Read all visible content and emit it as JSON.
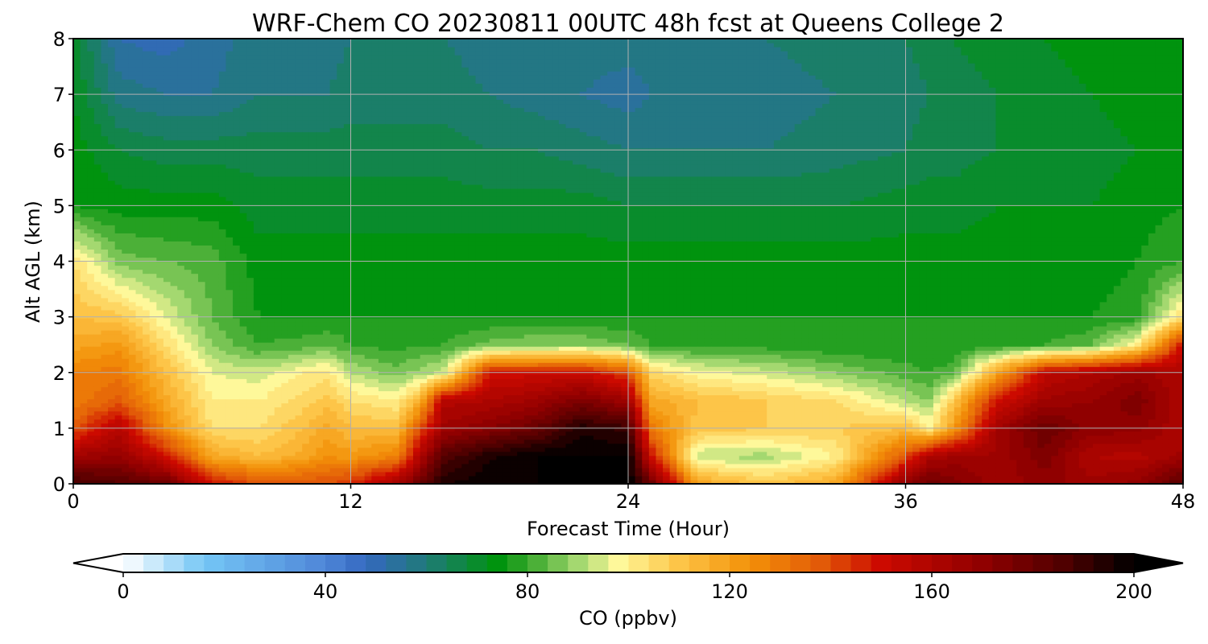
{
  "chart_data": {
    "type": "heatmap",
    "title": "WRF-Chem CO  20230811 00UTC 48h fcst at Queens College 2",
    "xlabel": "Forecast Time (Hour)",
    "ylabel": "Alt AGL (km)",
    "xlim": [
      0,
      48
    ],
    "ylim": [
      0,
      8
    ],
    "x_ticks": [
      "0",
      "12",
      "24",
      "36",
      "48"
    ],
    "y_ticks": [
      "0",
      "1",
      "2",
      "3",
      "4",
      "5",
      "6",
      "7",
      "8"
    ],
    "grid": true,
    "colorbar": {
      "label": "CO  (ppbv)",
      "range": [
        0,
        200
      ],
      "ticks": [
        "0",
        "40",
        "80",
        "120",
        "160",
        "200"
      ],
      "extend": "both",
      "levels_step": 4,
      "colors": {
        "under": "#ffffff",
        "over": "#000000",
        "stops": [
          [
            0,
            "#ffffff"
          ],
          [
            16,
            "#74c6f5"
          ],
          [
            40,
            "#4f86d8"
          ],
          [
            48,
            "#3468c0"
          ],
          [
            60,
            "#1f7a78"
          ],
          [
            74,
            "#00930e"
          ],
          [
            80,
            "#36a62a"
          ],
          [
            90,
            "#a4d870"
          ],
          [
            98,
            "#fef89a"
          ],
          [
            110,
            "#fdc548"
          ],
          [
            124,
            "#f39108"
          ],
          [
            138,
            "#e25a08"
          ],
          [
            150,
            "#cc0a00"
          ],
          [
            170,
            "#900000"
          ],
          [
            186,
            "#500000"
          ],
          [
            200,
            "#000000"
          ]
        ]
      }
    },
    "heights_km": [
      0.0,
      0.5,
      1.0,
      1.5,
      2.0,
      2.5,
      3.0,
      4.0,
      5.0,
      6.0,
      7.0,
      8.0
    ],
    "series": [
      {
        "x": 0,
        "values": [
          190,
          165,
          138,
          128,
          128,
          118,
          112,
          104,
          76,
          74,
          72,
          70
        ]
      },
      {
        "x": 2,
        "values": [
          185,
          168,
          158,
          138,
          130,
          122,
          110,
          86,
          74,
          68,
          58,
          52
        ]
      },
      {
        "x": 4,
        "values": [
          180,
          150,
          125,
          118,
          112,
          104,
          96,
          84,
          74,
          66,
          56,
          50
        ]
      },
      {
        "x": 6,
        "values": [
          150,
          118,
          104,
          100,
          96,
          88,
          84,
          82,
          74,
          66,
          56,
          54
        ]
      },
      {
        "x": 8,
        "values": [
          140,
          112,
          104,
          100,
          94,
          80,
          76,
          74,
          70,
          66,
          60,
          58
        ]
      },
      {
        "x": 10,
        "values": [
          140,
          118,
          112,
          106,
          100,
          82,
          76,
          74,
          70,
          66,
          60,
          58
        ]
      },
      {
        "x": 11,
        "values": [
          140,
          124,
          118,
          110,
          102,
          84,
          76,
          74,
          70,
          66,
          60,
          58
        ]
      },
      {
        "x": 12,
        "values": [
          145,
          122,
          112,
          104,
          92,
          80,
          76,
          74,
          70,
          66,
          62,
          60
        ]
      },
      {
        "x": 14,
        "values": [
          165,
          128,
          112,
          100,
          86,
          78,
          76,
          74,
          70,
          66,
          62,
          60
        ]
      },
      {
        "x": 15,
        "values": [
          180,
          160,
          140,
          116,
          90,
          80,
          76,
          74,
          70,
          66,
          62,
          60
        ]
      },
      {
        "x": 16,
        "values": [
          195,
          185,
          165,
          158,
          94,
          80,
          76,
          74,
          70,
          66,
          62,
          60
        ]
      },
      {
        "x": 18,
        "values": [
          200,
          195,
          172,
          160,
          150,
          86,
          76,
          74,
          70,
          64,
          60,
          58
        ]
      },
      {
        "x": 20,
        "values": [
          200,
          200,
          180,
          165,
          150,
          88,
          76,
          74,
          70,
          64,
          58,
          58
        ]
      },
      {
        "x": 22,
        "values": [
          200,
          200,
          195,
          175,
          152,
          88,
          76,
          74,
          70,
          62,
          56,
          58
        ]
      },
      {
        "x": 24,
        "values": [
          200,
          200,
          190,
          165,
          140,
          84,
          76,
          74,
          68,
          60,
          54,
          58
        ]
      },
      {
        "x": 25,
        "values": [
          180,
          150,
          130,
          118,
          106,
          80,
          76,
          74,
          68,
          60,
          56,
          58
        ]
      },
      {
        "x": 27,
        "values": [
          120,
          92,
          110,
          112,
          98,
          78,
          76,
          74,
          68,
          60,
          58,
          58
        ]
      },
      {
        "x": 30,
        "values": [
          110,
          90,
          108,
          108,
          94,
          78,
          76,
          74,
          68,
          60,
          58,
          60
        ]
      },
      {
        "x": 33,
        "values": [
          118,
          100,
          108,
          104,
          88,
          76,
          76,
          74,
          68,
          62,
          60,
          62
        ]
      },
      {
        "x": 36,
        "values": [
          170,
          140,
          112,
          92,
          82,
          76,
          76,
          74,
          70,
          64,
          62,
          64
        ]
      },
      {
        "x": 37,
        "values": [
          180,
          160,
          100,
          88,
          80,
          76,
          76,
          74,
          70,
          66,
          64,
          66
        ]
      },
      {
        "x": 38,
        "values": [
          175,
          165,
          120,
          108,
          82,
          76,
          76,
          74,
          70,
          66,
          66,
          68
        ]
      },
      {
        "x": 40,
        "values": [
          165,
          165,
          165,
          150,
          120,
          78,
          76,
          74,
          72,
          68,
          68,
          70
        ]
      },
      {
        "x": 42,
        "values": [
          170,
          175,
          180,
          165,
          155,
          80,
          76,
          74,
          72,
          70,
          70,
          72
        ]
      },
      {
        "x": 44,
        "values": [
          165,
          160,
          170,
          168,
          160,
          84,
          76,
          74,
          72,
          70,
          72,
          74
        ]
      },
      {
        "x": 46,
        "values": [
          170,
          158,
          170,
          175,
          166,
          100,
          78,
          76,
          74,
          72,
          74,
          76
        ]
      },
      {
        "x": 48,
        "values": [
          185,
          165,
          160,
          160,
          160,
          150,
          104,
          80,
          76,
          74,
          74,
          76
        ]
      }
    ]
  }
}
